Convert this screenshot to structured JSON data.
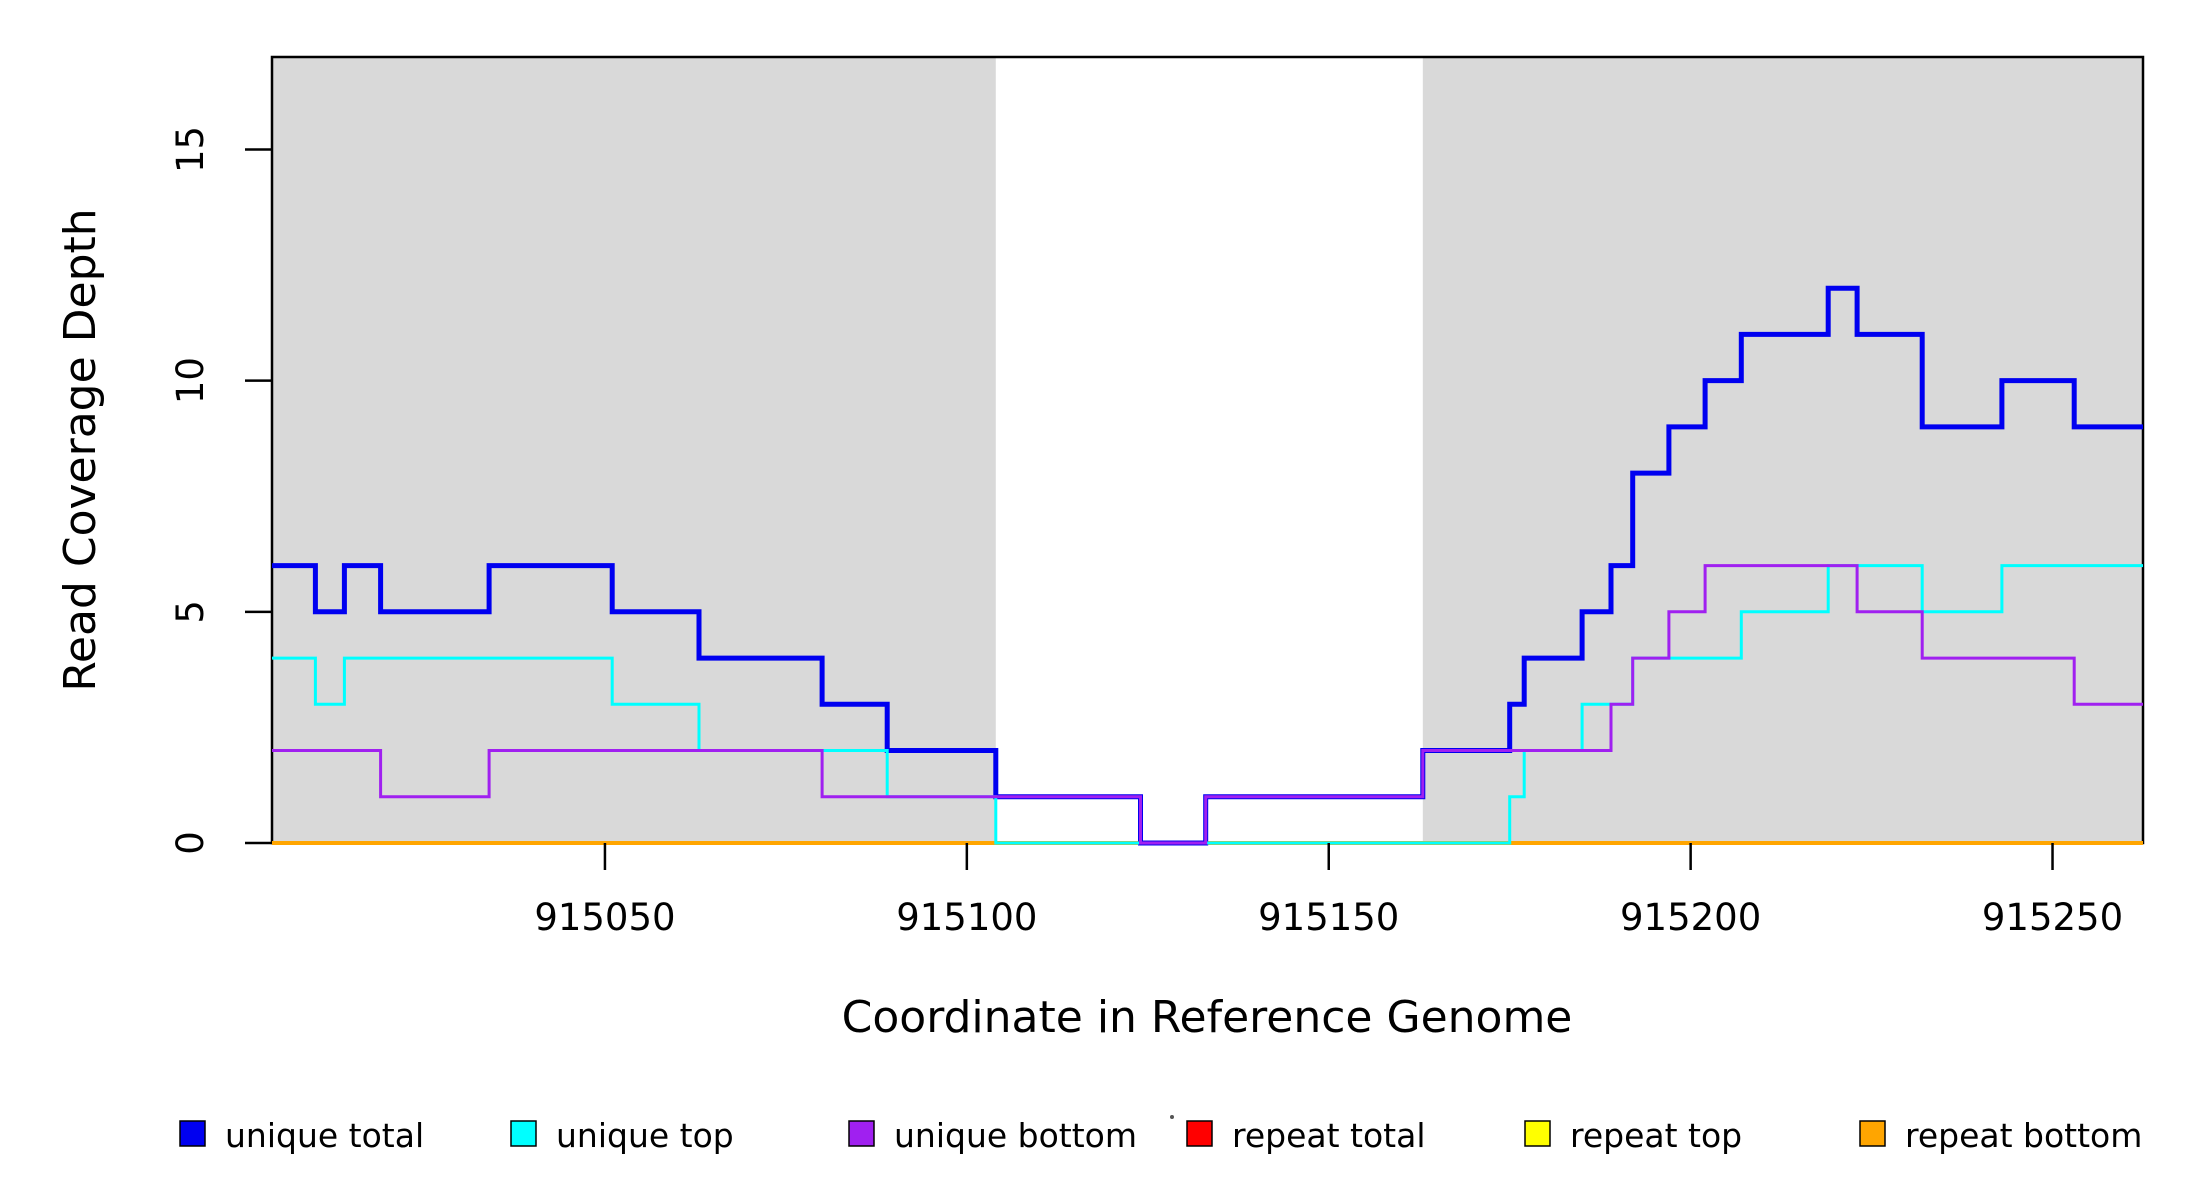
{
  "chart_data": {
    "type": "line",
    "subtype": "step-after",
    "title": "",
    "xlabel": "Coordinate in Reference Genome",
    "ylabel": "Read Coverage Depth",
    "xlim": [
      915004,
      915262.5
    ],
    "ylim": [
      0,
      17
    ],
    "x_ticks": [
      915050,
      915100,
      915150,
      915200,
      915250
    ],
    "y_ticks": [
      0,
      5,
      10,
      15
    ],
    "grid": false,
    "plot_background": "#ffffff",
    "shaded_regions": [
      {
        "x0": 915004,
        "x1": 915104,
        "color": "#d9d9d9"
      },
      {
        "x0": 915163,
        "x1": 915262.5,
        "color": "#d9d9d9"
      }
    ],
    "series": [
      {
        "id": "unique-total",
        "name": "unique total",
        "color": "#0000f0",
        "line_width": 5,
        "z": 3,
        "steps": [
          [
            915004,
            6
          ],
          [
            915010,
            5
          ],
          [
            915014,
            6
          ],
          [
            915019,
            5
          ],
          [
            915034,
            6
          ],
          [
            915051,
            5
          ],
          [
            915063,
            4
          ],
          [
            915080,
            3
          ],
          [
            915089,
            2
          ],
          [
            915104,
            1
          ],
          [
            915124,
            0
          ],
          [
            915133,
            1
          ],
          [
            915163,
            2
          ],
          [
            915175,
            3
          ],
          [
            915177,
            4
          ],
          [
            915185,
            5
          ],
          [
            915189,
            6
          ],
          [
            915192,
            8
          ],
          [
            915197,
            9
          ],
          [
            915202,
            10
          ],
          [
            915207,
            11
          ],
          [
            915219,
            12
          ],
          [
            915223,
            11
          ],
          [
            915232,
            9
          ],
          [
            915243,
            10
          ],
          [
            915253,
            9
          ]
        ]
      },
      {
        "id": "unique-top",
        "name": "unique top",
        "color": "#00ffff",
        "line_width": 3,
        "z": 4,
        "steps": [
          [
            915004,
            4
          ],
          [
            915010,
            3
          ],
          [
            915014,
            4
          ],
          [
            915051,
            3
          ],
          [
            915063,
            2
          ],
          [
            915089,
            1
          ],
          [
            915104,
            0
          ],
          [
            915175,
            1
          ],
          [
            915177,
            2
          ],
          [
            915185,
            3
          ],
          [
            915192,
            4
          ],
          [
            915207,
            5
          ],
          [
            915219,
            6
          ],
          [
            915232,
            5
          ],
          [
            915243,
            6
          ]
        ]
      },
      {
        "id": "unique-bottom",
        "name": "unique bottom",
        "color": "#a020f0",
        "line_width": 3,
        "z": 5,
        "steps": [
          [
            915004,
            2
          ],
          [
            915019,
            1
          ],
          [
            915034,
            2
          ],
          [
            915080,
            1
          ],
          [
            915124,
            0
          ],
          [
            915133,
            1
          ],
          [
            915163,
            2
          ],
          [
            915189,
            3
          ],
          [
            915192,
            4
          ],
          [
            915197,
            5
          ],
          [
            915202,
            6
          ],
          [
            915223,
            5
          ],
          [
            915232,
            4
          ],
          [
            915253,
            3
          ]
        ]
      },
      {
        "id": "repeat-total",
        "name": "repeat total",
        "color": "#ff0000",
        "line_width": 3,
        "z": 0,
        "steps": [
          [
            915004,
            0
          ]
        ]
      },
      {
        "id": "repeat-top",
        "name": "repeat top",
        "color": "#ffff00",
        "line_width": 3,
        "z": 1,
        "steps": [
          [
            915004,
            0
          ]
        ]
      },
      {
        "id": "repeat-bottom",
        "name": "repeat bottom",
        "color": "#ffa500",
        "line_width": 4,
        "z": 2,
        "steps": [
          [
            915004,
            0
          ]
        ]
      }
    ],
    "legend_position": "bottom"
  },
  "legend": {
    "items": [
      {
        "id": "unique-total",
        "label": "unique total",
        "color": "#0000f0"
      },
      {
        "id": "unique-top",
        "label": "unique top",
        "color": "#00ffff"
      },
      {
        "id": "unique-bottom",
        "label": "unique bottom",
        "color": "#a020f0"
      },
      {
        "id": "repeat-total",
        "label": "repeat total",
        "color": "#ff0000"
      },
      {
        "id": "repeat-top",
        "label": "repeat top",
        "color": "#ffff00"
      },
      {
        "id": "repeat-bottom",
        "label": "repeat bottom",
        "color": "#ffa500"
      }
    ]
  }
}
